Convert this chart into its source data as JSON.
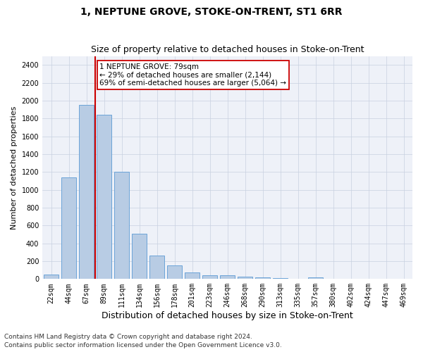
{
  "title": "1, NEPTUNE GROVE, STOKE-ON-TRENT, ST1 6RR",
  "subtitle": "Size of property relative to detached houses in Stoke-on-Trent",
  "xlabel": "Distribution of detached houses by size in Stoke-on-Trent",
  "ylabel": "Number of detached properties",
  "categories": [
    "22sqm",
    "44sqm",
    "67sqm",
    "89sqm",
    "111sqm",
    "134sqm",
    "156sqm",
    "178sqm",
    "201sqm",
    "223sqm",
    "246sqm",
    "268sqm",
    "290sqm",
    "313sqm",
    "335sqm",
    "357sqm",
    "380sqm",
    "402sqm",
    "424sqm",
    "447sqm",
    "469sqm"
  ],
  "values": [
    50,
    1140,
    1950,
    1840,
    1200,
    510,
    260,
    155,
    75,
    40,
    45,
    30,
    20,
    10,
    5,
    15,
    5,
    3,
    2,
    1,
    1
  ],
  "bar_color": "#b8cce4",
  "bar_edge_color": "#5b9bd5",
  "vline_pos": 2.5,
  "annotation_line1": "1 NEPTUNE GROVE: 79sqm",
  "annotation_line2": "← 29% of detached houses are smaller (2,144)",
  "annotation_line3": "69% of semi-detached houses are larger (5,064) →",
  "vline_color": "#cc0000",
  "annotation_box_color": "#cc0000",
  "ylim": [
    0,
    2500
  ],
  "yticks": [
    0,
    200,
    400,
    600,
    800,
    1000,
    1200,
    1400,
    1600,
    1800,
    2000,
    2200,
    2400
  ],
  "footer_line1": "Contains HM Land Registry data © Crown copyright and database right 2024.",
  "footer_line2": "Contains public sector information licensed under the Open Government Licence v3.0.",
  "title_fontsize": 10,
  "subtitle_fontsize": 9,
  "xlabel_fontsize": 9,
  "ylabel_fontsize": 8,
  "tick_fontsize": 7,
  "annotation_fontsize": 7.5,
  "footer_fontsize": 6.5,
  "plot_bg_color": "#eef1f8",
  "grid_color": "#c8d0e0"
}
